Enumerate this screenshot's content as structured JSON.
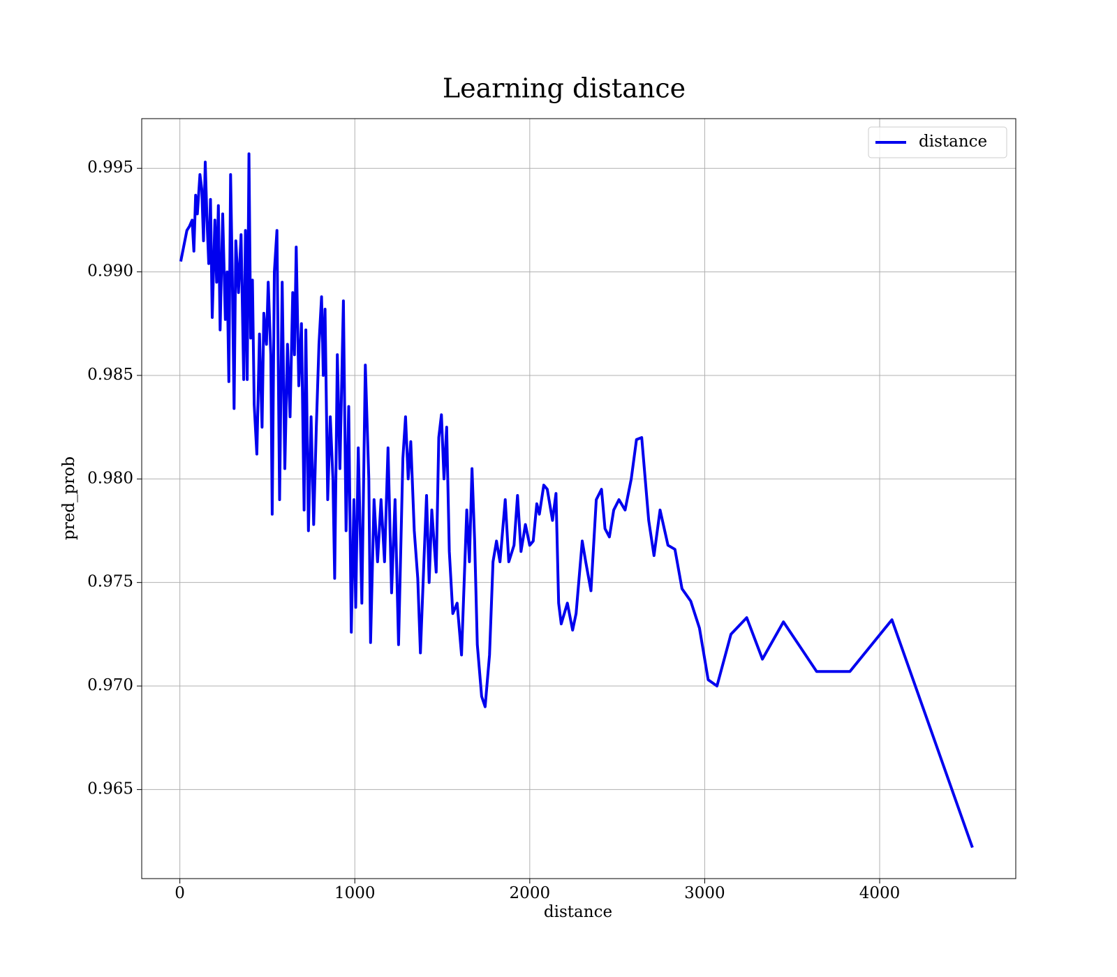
{
  "chart_data": {
    "type": "line",
    "title": "Learning distance",
    "x_label": "distance",
    "y_label": "pred_prob",
    "legend": "upper right",
    "grid": true,
    "xlim": [
      -218,
      4778
    ],
    "ylim": [
      0.9607,
      0.9974
    ],
    "xticks": [
      0,
      1000,
      2000,
      3000,
      4000
    ],
    "yticks": [
      0.965,
      {
        "value": 0.97,
        "label": "0.970"
      },
      0.975,
      {
        "value": 0.98,
        "label": "0.980"
      },
      0.985,
      {
        "value": 0.99,
        "label": "0.990"
      },
      0.995
    ],
    "series": [
      {
        "name": "distance",
        "color": "#0000ee",
        "x": [
          5,
          40,
          55,
          70,
          80,
          90,
          100,
          115,
          125,
          135,
          145,
          155,
          165,
          175,
          185,
          200,
          210,
          220,
          230,
          245,
          260,
          270,
          280,
          290,
          300,
          310,
          320,
          335,
          350,
          365,
          375,
          385,
          395,
          405,
          415,
          425,
          440,
          455,
          470,
          480,
          495,
          505,
          520,
          528,
          540,
          555,
          570,
          585,
          600,
          615,
          630,
          645,
          655,
          665,
          680,
          695,
          710,
          720,
          735,
          750,
          765,
          780,
          795,
          810,
          820,
          830,
          845,
          860,
          875,
          885,
          900,
          915,
          935,
          950,
          965,
          980,
          995,
          1005,
          1020,
          1040,
          1060,
          1080,
          1090,
          1110,
          1130,
          1150,
          1170,
          1190,
          1210,
          1230,
          1250,
          1275,
          1290,
          1305,
          1320,
          1340,
          1360,
          1375,
          1395,
          1410,
          1425,
          1440,
          1465,
          1480,
          1495,
          1510,
          1525,
          1540,
          1560,
          1585,
          1610,
          1640,
          1655,
          1670,
          1685,
          1700,
          1725,
          1745,
          1770,
          1790,
          1810,
          1830,
          1860,
          1880,
          1910,
          1930,
          1950,
          1975,
          2000,
          2020,
          2040,
          2055,
          2080,
          2100,
          2130,
          2150,
          2165,
          2180,
          2215,
          2245,
          2265,
          2300,
          2320,
          2350,
          2380,
          2410,
          2430,
          2455,
          2480,
          2510,
          2545,
          2580,
          2610,
          2640,
          2680,
          2710,
          2745,
          2790,
          2830,
          2870,
          2920,
          2970,
          3020,
          3070,
          3150,
          3240,
          3330,
          3450,
          3640,
          3830,
          4070,
          4530
        ],
        "values": [
          0.9905,
          0.992,
          0.9922,
          0.9925,
          0.991,
          0.9937,
          0.9928,
          0.9947,
          0.994,
          0.9915,
          0.9953,
          0.9925,
          0.9904,
          0.9935,
          0.9878,
          0.9925,
          0.9895,
          0.9932,
          0.9872,
          0.9928,
          0.9877,
          0.99,
          0.9847,
          0.9947,
          0.9897,
          0.9834,
          0.9915,
          0.989,
          0.9918,
          0.9848,
          0.992,
          0.9848,
          0.9957,
          0.9868,
          0.9896,
          0.9836,
          0.9812,
          0.987,
          0.9825,
          0.988,
          0.9865,
          0.9895,
          0.986,
          0.9783,
          0.99,
          0.992,
          0.979,
          0.9895,
          0.9805,
          0.9865,
          0.983,
          0.989,
          0.986,
          0.9912,
          0.9845,
          0.9875,
          0.9785,
          0.9872,
          0.9775,
          0.983,
          0.9778,
          0.9825,
          0.9865,
          0.9888,
          0.985,
          0.9882,
          0.979,
          0.983,
          0.98,
          0.9752,
          0.986,
          0.9805,
          0.9886,
          0.9775,
          0.9835,
          0.9726,
          0.979,
          0.9738,
          0.9815,
          0.974,
          0.9855,
          0.98,
          0.9721,
          0.979,
          0.976,
          0.979,
          0.976,
          0.9815,
          0.9745,
          0.979,
          0.972,
          0.981,
          0.983,
          0.98,
          0.9818,
          0.9775,
          0.9752,
          0.9716,
          0.976,
          0.9792,
          0.975,
          0.9785,
          0.9755,
          0.982,
          0.9831,
          0.98,
          0.9825,
          0.9765,
          0.9735,
          0.974,
          0.9715,
          0.9785,
          0.976,
          0.9805,
          0.977,
          0.972,
          0.9695,
          0.969,
          0.9715,
          0.976,
          0.977,
          0.976,
          0.979,
          0.976,
          0.9768,
          0.9792,
          0.9765,
          0.9778,
          0.9768,
          0.977,
          0.9788,
          0.9783,
          0.9797,
          0.9795,
          0.978,
          0.9793,
          0.974,
          0.973,
          0.974,
          0.9727,
          0.9735,
          0.977,
          0.976,
          0.9746,
          0.979,
          0.9795,
          0.9776,
          0.9772,
          0.9785,
          0.979,
          0.9785,
          0.98,
          0.9819,
          0.982,
          0.978,
          0.9763,
          0.9785,
          0.9768,
          0.9766,
          0.9747,
          0.9741,
          0.9728,
          0.9703,
          0.97,
          0.9725,
          0.9733,
          0.9713,
          0.9731,
          0.9707,
          0.9707,
          0.9732,
          0.9622
        ]
      }
    ]
  }
}
